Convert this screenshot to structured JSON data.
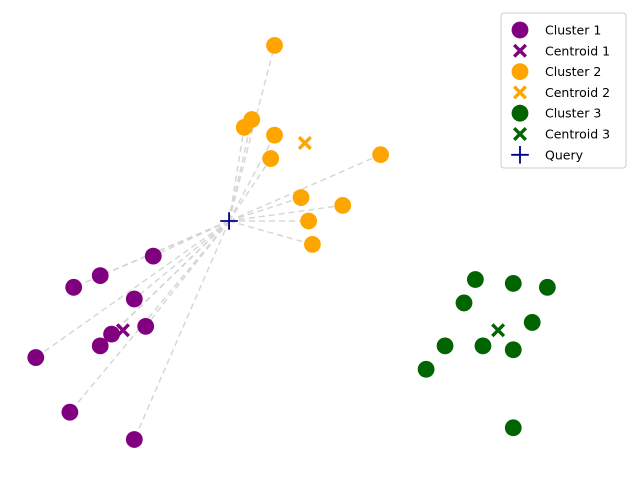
{
  "chart_data": {
    "type": "scatter",
    "title": "",
    "xlabel": "",
    "ylabel": "",
    "axes_visible": false,
    "grid": false,
    "xlim": [
      -0.1,
      15.1
    ],
    "ylim": [
      -0.1,
      11.1
    ],
    "legend_position": "top-right",
    "series": [
      {
        "name": "Cluster 1",
        "marker": "circle",
        "color": "#800080",
        "points": [
          [
            3.1,
            5.1
          ],
          [
            2.6,
            4.0
          ],
          [
            1.7,
            4.6
          ],
          [
            1.0,
            4.3
          ],
          [
            2.9,
            3.3
          ],
          [
            2.0,
            3.1
          ],
          [
            1.7,
            2.8
          ],
          [
            0.0,
            2.5
          ],
          [
            0.9,
            1.1
          ],
          [
            2.6,
            0.4
          ]
        ]
      },
      {
        "name": "Centroid 1",
        "marker": "X",
        "color": "#800080",
        "points": [
          [
            2.3,
            3.2
          ]
        ]
      },
      {
        "name": "Cluster 2",
        "marker": "circle",
        "color": "#ffa500",
        "points": [
          [
            6.3,
            10.5
          ],
          [
            5.5,
            8.4
          ],
          [
            5.7,
            8.6
          ],
          [
            6.3,
            8.2
          ],
          [
            6.2,
            7.6
          ],
          [
            9.1,
            7.7
          ],
          [
            7.0,
            6.6
          ],
          [
            7.2,
            6.0
          ],
          [
            8.1,
            6.4
          ],
          [
            7.3,
            5.4
          ]
        ]
      },
      {
        "name": "Centroid 2",
        "marker": "X",
        "color": "#ffa500",
        "points": [
          [
            7.1,
            8.0
          ]
        ]
      },
      {
        "name": "Cluster 3",
        "marker": "circle",
        "color": "#006400",
        "points": [
          [
            11.6,
            4.5
          ],
          [
            12.6,
            4.4
          ],
          [
            13.5,
            4.3
          ],
          [
            11.3,
            3.9
          ],
          [
            13.1,
            3.4
          ],
          [
            10.8,
            2.8
          ],
          [
            11.8,
            2.8
          ],
          [
            12.6,
            2.7
          ],
          [
            10.3,
            2.2
          ],
          [
            12.6,
            0.7
          ]
        ]
      },
      {
        "name": "Centroid 3",
        "marker": "X",
        "color": "#006400",
        "points": [
          [
            12.2,
            3.2
          ]
        ]
      },
      {
        "name": "Query",
        "marker": "plus",
        "color": "#00008b",
        "points": [
          [
            5.1,
            6.0
          ]
        ]
      }
    ],
    "neighbor_lines": {
      "from_series": "Query",
      "to_series": [
        "Cluster 1",
        "Cluster 2"
      ],
      "style": "dashed",
      "color": "#d3d3d3"
    }
  }
}
